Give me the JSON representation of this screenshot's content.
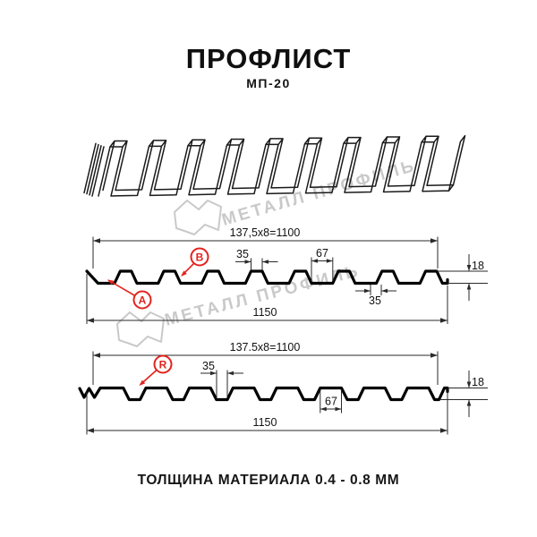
{
  "title": "ПРОФЛИСТ",
  "subtitle": "МП-20",
  "footer": "ТОЛЩИНА МАТЕРИАЛА 0.4 - 0.8 ММ",
  "watermark": {
    "brand": "МЕТАЛЛ ПРОФИЛЬ",
    "color": "#c9c9c9"
  },
  "colors": {
    "line": "#000000",
    "dimension": "#2a2a2a",
    "accent_red": "#e2231e"
  },
  "profile_top": {
    "useful_width": "137,5x8=1100",
    "overall_width": "1150",
    "height": "18",
    "crest_width": "35",
    "valley_width": "67",
    "crest_width_bottom": "35",
    "label_a": "A",
    "label_b": "B"
  },
  "profile_bottom": {
    "useful_width": "137.5x8=1100",
    "overall_width": "1150",
    "height": "18",
    "valley_width": "35",
    "crest_width": "67",
    "label_r": "R"
  }
}
